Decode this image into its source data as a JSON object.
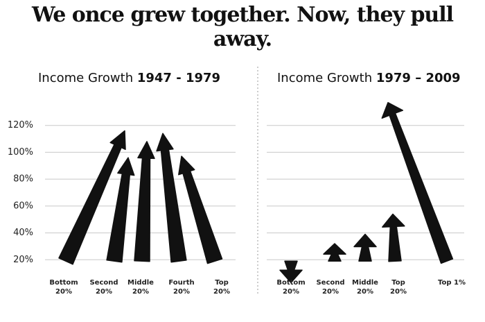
{
  "title": "We once grew together. Now, they pull away.",
  "chart_data": [
    {
      "type": "arrow",
      "title": "Income Growth",
      "period": "1947 - 1979",
      "categories": [
        "Bottom 20%",
        "Second 20%",
        "Middle 20%",
        "Fourth 20%",
        "Top 20%"
      ],
      "values": [
        116,
        96,
        108,
        114,
        97
      ],
      "color": "#111111",
      "ylim": [
        0,
        140
      ],
      "yticks": [
        {
          "value": 20,
          "label": "20%"
        },
        {
          "value": 40,
          "label": "40%"
        },
        {
          "value": 60,
          "label": "60%"
        },
        {
          "value": 80,
          "label": "80%"
        },
        {
          "value": 100,
          "label": "100%"
        },
        {
          "value": 120,
          "label": "120%"
        }
      ],
      "grid": true,
      "tick_labels": true
    },
    {
      "type": "arrow",
      "title": "Income Growth",
      "period": "1979 – 2009",
      "categories": [
        "Bottom 20%",
        "Second 20%",
        "Middle 20%",
        "Top 20%",
        "Top 1%"
      ],
      "values": [
        3,
        32,
        39,
        54,
        137
      ],
      "color": "#111111",
      "ylim": [
        0,
        140
      ],
      "yticks": [
        20,
        40,
        60,
        80,
        100,
        120
      ],
      "grid": true,
      "tick_labels": false
    }
  ]
}
